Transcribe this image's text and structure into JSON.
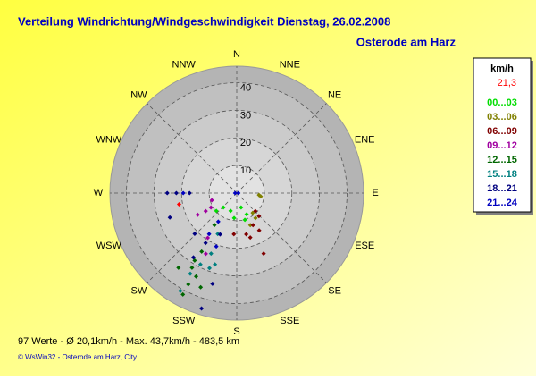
{
  "chart_data": {
    "type": "polar-scatter",
    "title": "Verteilung Windrichtung/Windgeschwindigkeit  Dienstag, 26.02.2008",
    "subtitle": "Osterode am Harz",
    "directions": [
      "N",
      "NNE",
      "NE",
      "ENE",
      "E",
      "ESE",
      "SE",
      "SSE",
      "S",
      "SSW",
      "SW",
      "WSW",
      "W",
      "WNW",
      "NW",
      "NNW"
    ],
    "rlim": [
      0,
      46
    ],
    "rticks": [
      10,
      20,
      30,
      40
    ],
    "legend_title": "km/h",
    "current": {
      "label": "21,3",
      "value": 21.3,
      "direction": 259,
      "color": "#ff0000"
    },
    "series": [
      {
        "name": "00...03",
        "color": "#00dd00",
        "x": [
          199,
          186,
          163,
          163,
          223,
          155,
          229
        ],
        "values": [
          6.8,
          9.1,
          5.4,
          10.1,
          7.1,
          8.5,
          9.8
        ]
      },
      {
        "name": "03...06",
        "color": "#808000",
        "x": [
          95,
          98,
          141,
          143,
          157
        ],
        "values": [
          8.1,
          8.8,
          9.2,
          11.3,
          12.6
        ]
      },
      {
        "name": "06...09",
        "color": "#800000",
        "x": [
          134,
          136,
          153,
          167,
          149,
          156,
          184,
          163
        ],
        "values": [
          9.4,
          11.6,
          13.0,
          15.3,
          15.8,
          24.0,
          14.9,
          16.8
        ]
      },
      {
        "name": "09...12",
        "color": "#a000a0",
        "x": [
          254,
          240,
          241,
          241,
          213,
          207
        ],
        "values": [
          9.4,
          13.0,
          16.2,
          10.7,
          19.3,
          24.7
        ]
      },
      {
        "name": "12...15",
        "color": "#006600",
        "x": [
          215,
          211,
          211,
          208,
          206,
          201,
          208,
          218,
          212
        ],
        "values": [
          14.1,
          24.7,
          31.5,
          37.4,
          33.6,
          36.5,
          41.6,
          34.3,
          28.8
        ]
      },
      {
        "name": "15...18",
        "color": "#008080",
        "x": [
          197,
          200,
          205,
          207,
          210,
          210,
          203
        ],
        "values": [
          27.0,
          28.9,
          16.3,
          29.0,
          33.7,
          40.9,
          23.8
        ]
      },
      {
        "name": "18...21",
        "color": "#000080",
        "x": [
          270,
          270,
          270,
          250,
          226,
          212,
          214,
          202,
          195,
          197
        ],
        "values": [
          25.2,
          21.9,
          17.1,
          25.8,
          21.2,
          21.3,
          28.1,
          16.1,
          34.0,
          43.7
        ]
      },
      {
        "name": "21...24",
        "color": "#0000c0",
        "x": [
          270,
          270,
          90,
          213,
          214,
          201
        ],
        "values": [
          19.4,
          0.6,
          0.6,
          12.3,
          17.9,
          20.7
        ]
      }
    ]
  },
  "footer": {
    "stats": "97 Werte   -   Ø 20,1km/h   -   Max. 43,7km/h   -   483,5 km",
    "credit": "© WsWin32  -  Osterode am Harz, City"
  }
}
